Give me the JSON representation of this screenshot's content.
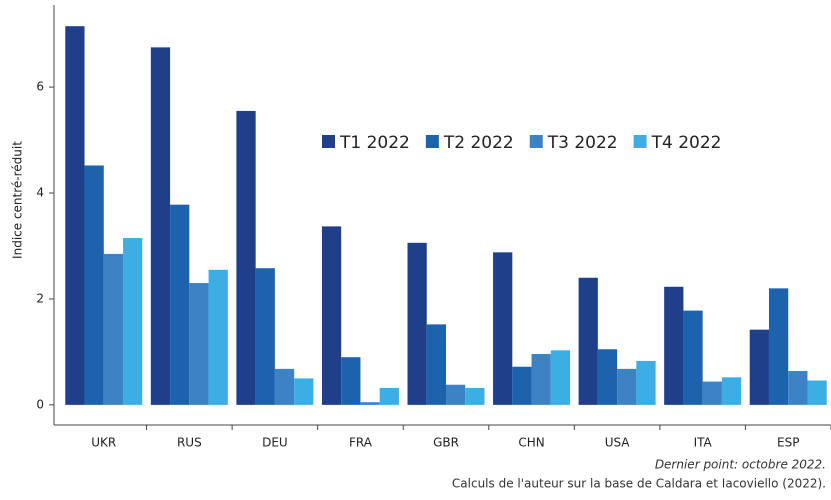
{
  "chart_data": {
    "type": "bar",
    "y_label": "Indice centré-réduit",
    "categories": [
      "UKR",
      "RUS",
      "DEU",
      "FRA",
      "GBR",
      "CHN",
      "USA",
      "ITA",
      "ESP"
    ],
    "series": [
      {
        "name": "T1 2022",
        "color": "#1f3f8a",
        "values": [
          7.15,
          6.75,
          5.55,
          3.37,
          3.06,
          2.88,
          2.4,
          2.23,
          1.42
        ]
      },
      {
        "name": "T2 2022",
        "color": "#1c62ad",
        "values": [
          4.52,
          3.78,
          2.58,
          0.9,
          1.52,
          0.72,
          1.05,
          1.78,
          2.2
        ]
      },
      {
        "name": "T3 2022",
        "color": "#3d82c4",
        "values": [
          2.85,
          2.3,
          0.68,
          0.05,
          0.38,
          0.96,
          0.68,
          0.44,
          0.64
        ]
      },
      {
        "name": "T4 2022",
        "color": "#3daee4",
        "values": [
          3.15,
          2.55,
          0.5,
          0.32,
          0.32,
          1.03,
          0.83,
          0.52,
          0.46
        ]
      }
    ],
    "ylim": [
      -0.38,
      7.55
    ],
    "yticks": [
      0,
      2,
      4,
      6
    ],
    "notes": [
      "Dernier point: octobre 2022.",
      "Calculs de l'auteur sur la base de Caldara et Iacoviello (2022)."
    ]
  }
}
